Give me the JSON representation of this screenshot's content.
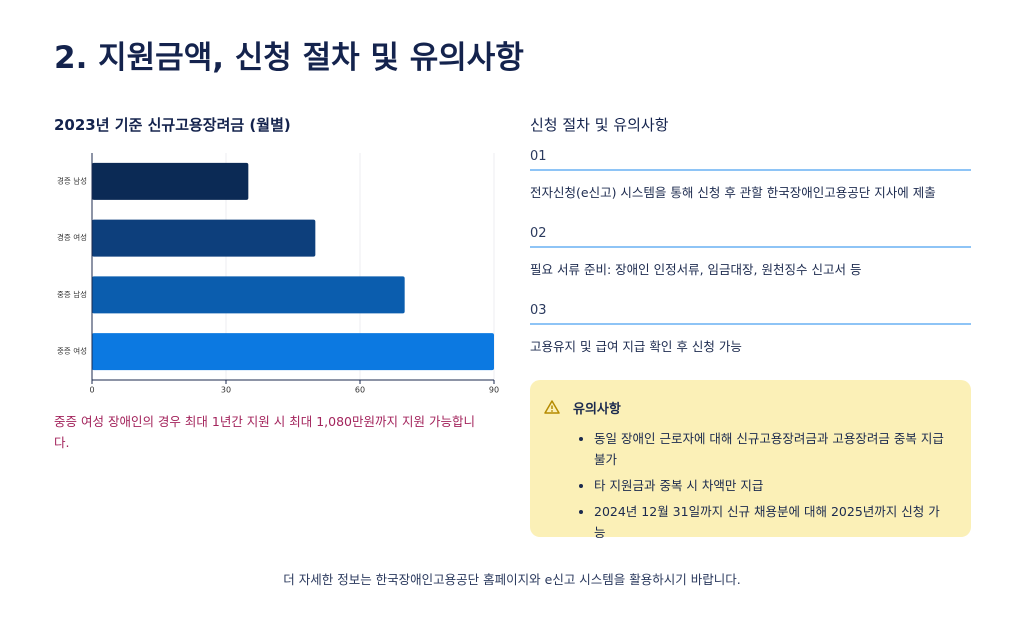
{
  "title": "2. 지원금액, 신청 절차 및 유의사항",
  "chart_data": {
    "type": "hbar",
    "title": "2023년 기준 신규고용장려금 (월별)",
    "categories": [
      "경증 남성",
      "경증 여성",
      "중증 남성",
      "중증 여성"
    ],
    "values": [
      35,
      50,
      70,
      90
    ],
    "colors": [
      "#0b2a55",
      "#0d3f7c",
      "#0b5dae",
      "#0c79e1"
    ],
    "xlim": [
      0,
      90
    ],
    "xticks": [
      0,
      30,
      60,
      90
    ],
    "grid": true,
    "annotation": "중증 여성 장애인의 경우 최대 1년간 지원 시 최대 1,080만원까지 지원 가능합니다."
  },
  "procedure": {
    "heading": "신청 절차 및 유의사항",
    "steps": [
      {
        "number": "01",
        "text": "전자신청(e신고) 시스템을 통해 신청 후 관할 한국장애인고용공단 지사에 제출"
      },
      {
        "number": "02",
        "text": "필요 서류 준비: 장애인 인정서류, 임금대장, 원천징수 신고서 등"
      },
      {
        "number": "03",
        "text": "고용유지 및 급여 지급 확인 후 신청 가능"
      }
    ]
  },
  "caution": {
    "title": "유의사항",
    "items": [
      "동일 장애인 근로자에 대해 신규고용장려금과 고용장려금 중복 지급 불가",
      "타 지원금과 중복 시 차액만 지급",
      "2024년 12월 31일까지 신규 채용분에 대해 2025년까지 신청 가능"
    ]
  },
  "footer": "더 자세한 정보는 한국장애인고용공단 홈페이지와 e신고 시스템을 활용하시기 바랍니다."
}
